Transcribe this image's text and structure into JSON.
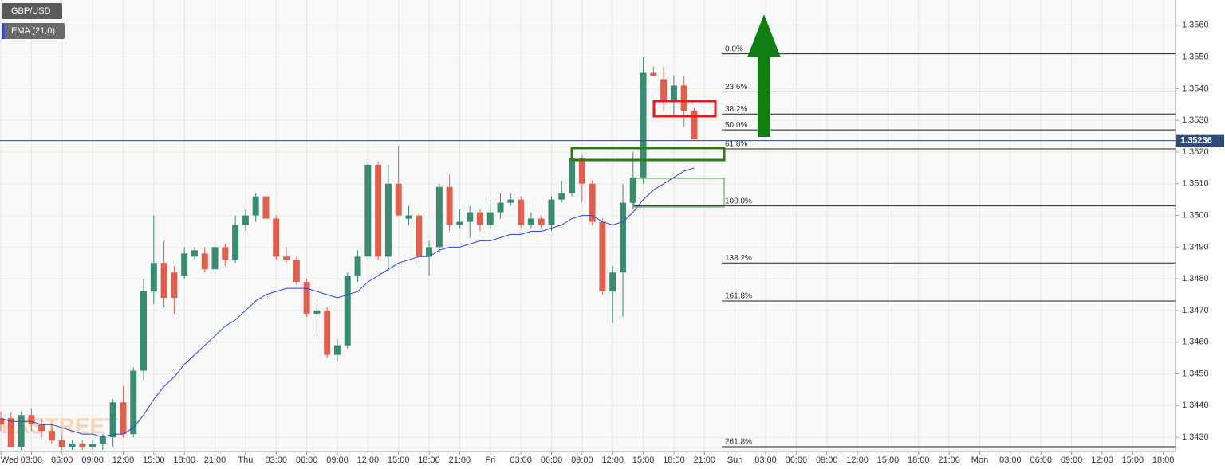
{
  "chart_data": {
    "type": "candlestick",
    "symbol": "GBP/USD",
    "watermark": "FXSTREET",
    "up_color": "#3b8a73",
    "down_color": "#e0604f",
    "grid": true,
    "x": [
      0,
      1,
      2,
      3,
      4,
      5,
      6,
      7,
      8,
      9,
      10,
      11,
      12,
      13,
      14,
      15,
      16,
      17,
      18,
      19,
      20,
      21,
      22,
      23,
      24,
      25,
      26,
      27,
      28,
      29,
      30,
      31,
      32,
      33,
      34,
      35,
      36,
      37,
      38,
      39,
      40,
      41,
      42,
      43,
      44,
      45,
      46,
      47,
      48,
      49,
      50,
      51,
      52,
      53,
      54,
      55,
      56,
      57,
      58,
      59,
      60,
      61,
      62,
      63,
      64,
      65,
      66,
      67,
      68
    ],
    "open": [
      1.3436,
      1.3436,
      1.3427,
      1.3437,
      1.3434,
      1.3432,
      1.3429,
      1.3427,
      1.3428,
      1.3427,
      1.3428,
      1.343,
      1.3441,
      1.3431,
      1.3451,
      1.3476,
      1.3485,
      1.3482,
      1.3481,
      1.3487,
      1.3488,
      1.3483,
      1.349,
      1.3486,
      1.3497,
      1.35,
      1.3506,
      1.3499,
      1.3487,
      1.3486,
      1.3479,
      1.3469,
      1.347,
      1.3456,
      1.3459,
      1.3481,
      1.3487,
      1.3516,
      1.3487,
      1.351,
      1.3499,
      1.35,
      1.3487,
      1.349,
      1.3509,
      1.3497,
      1.3498,
      1.3501,
      1.3497,
      1.3501,
      1.3504,
      1.3505,
      1.3497,
      1.3499,
      1.3497,
      1.3505,
      1.3507,
      1.3518,
      1.351,
      1.3498,
      1.3476,
      1.3482,
      1.3504,
      1.3512,
      1.3545,
      1.3543,
      1.3536,
      1.3541,
      1.3533
    ],
    "high": [
      1.3438,
      1.3438,
      1.3438,
      1.3439,
      1.3436,
      1.3434,
      1.3431,
      1.3429,
      1.3429,
      1.3429,
      1.3431,
      1.3442,
      1.3446,
      1.3452,
      1.348,
      1.35,
      1.3492,
      1.3484,
      1.349,
      1.349,
      1.349,
      1.3491,
      1.3491,
      1.35,
      1.3502,
      1.3507,
      1.3506,
      1.35,
      1.349,
      1.3487,
      1.348,
      1.3472,
      1.3471,
      1.3461,
      1.3482,
      1.3489,
      1.3517,
      1.3517,
      1.3516,
      1.3522,
      1.3503,
      1.3501,
      1.3492,
      1.351,
      1.3513,
      1.3502,
      1.3503,
      1.3502,
      1.3505,
      1.3507,
      1.3507,
      1.3506,
      1.3501,
      1.35,
      1.3506,
      1.3511,
      1.3519,
      1.3519,
      1.3511,
      1.3499,
      1.3484,
      1.351,
      1.352,
      1.355,
      1.3547,
      1.3547,
      1.3544,
      1.3544,
      1.3534
    ],
    "low": [
      1.3432,
      1.3427,
      1.3426,
      1.3432,
      1.343,
      1.3428,
      1.3426,
      1.3426,
      1.3426,
      1.3426,
      1.3426,
      1.3427,
      1.343,
      1.343,
      1.3448,
      1.3472,
      1.3471,
      1.3469,
      1.348,
      1.3486,
      1.3482,
      1.3482,
      1.3484,
      1.3485,
      1.3495,
      1.3498,
      1.3499,
      1.3486,
      1.3485,
      1.3478,
      1.3468,
      1.3462,
      1.3455,
      1.3454,
      1.3458,
      1.3479,
      1.3486,
      1.3486,
      1.3482,
      1.35,
      1.3497,
      1.3485,
      1.3481,
      1.3488,
      1.3495,
      1.3496,
      1.3493,
      1.3495,
      1.3496,
      1.3499,
      1.3503,
      1.3496,
      1.3496,
      1.3496,
      1.3495,
      1.3504,
      1.3506,
      1.3504,
      1.3497,
      1.3475,
      1.3466,
      1.3468,
      1.3502,
      1.351,
      1.3544,
      1.3533,
      1.3531,
      1.3528,
      1.3524
    ],
    "close": [
      1.3434,
      1.3427,
      1.3437,
      1.3434,
      1.3432,
      1.3429,
      1.3427,
      1.3428,
      1.3427,
      1.3428,
      1.343,
      1.3441,
      1.3431,
      1.3451,
      1.3476,
      1.3485,
      1.3474,
      1.3474,
      1.3488,
      1.3489,
      1.3483,
      1.349,
      1.3486,
      1.3497,
      1.35,
      1.3506,
      1.3499,
      1.3487,
      1.3486,
      1.3479,
      1.3469,
      1.347,
      1.3456,
      1.3459,
      1.3481,
      1.3487,
      1.3516,
      1.3487,
      1.351,
      1.35,
      1.35,
      1.3487,
      1.349,
      1.3509,
      1.3497,
      1.3498,
      1.3501,
      1.3497,
      1.3501,
      1.3504,
      1.3505,
      1.3497,
      1.3499,
      1.3497,
      1.3505,
      1.3507,
      1.3518,
      1.351,
      1.3498,
      1.3476,
      1.3482,
      1.3504,
      1.3512,
      1.3545,
      1.3544,
      1.3536,
      1.3541,
      1.3533,
      1.3524
    ],
    "series": [
      {
        "name": "EMA (21,0)",
        "color": "#2a45d8",
        "values": [
          1.3436,
          1.3435,
          1.3435,
          1.3435,
          1.3434,
          1.3434,
          1.3433,
          1.3432,
          1.3431,
          1.3431,
          1.343,
          1.3431,
          1.3431,
          1.3433,
          1.3437,
          1.3442,
          1.3446,
          1.3449,
          1.3453,
          1.3456,
          1.3459,
          1.3462,
          1.3465,
          1.3467,
          1.347,
          1.3473,
          1.3475,
          1.3476,
          1.3477,
          1.3477,
          1.3477,
          1.3476,
          1.3475,
          1.3474,
          1.3475,
          1.3476,
          1.3479,
          1.3481,
          1.3483,
          1.3485,
          1.3486,
          1.3487,
          1.3487,
          1.3489,
          1.349,
          1.349,
          1.3491,
          1.3492,
          1.3492,
          1.3493,
          1.3494,
          1.3494,
          1.3495,
          1.3495,
          1.3496,
          1.3497,
          1.3499,
          1.35,
          1.35,
          1.3498,
          1.3497,
          1.3498,
          1.3501,
          1.3505,
          1.3508,
          1.351,
          1.3512,
          1.3514,
          1.3515
        ]
      }
    ],
    "last_price": 1.35236,
    "fib_levels": [
      {
        "label": "0.0%",
        "value": 1.3551
      },
      {
        "label": "23.6%",
        "value": 1.3539
      },
      {
        "label": "38.2%",
        "value": 1.3532
      },
      {
        "label": "50.0%",
        "value": 1.3527
      },
      {
        "label": "61.8%",
        "value": 1.3521
      },
      {
        "label": "100.0%",
        "value": 1.3503
      },
      {
        "label": "138.2%",
        "value": 1.3485
      },
      {
        "label": "161.8%",
        "value": 1.3473
      },
      {
        "label": "261.8%",
        "value": 1.3427
      }
    ],
    "xlim": [
      -0.08,
      115.2
    ],
    "ylim": [
      1.34255,
      1.3568
    ],
    "yticks": [
      {
        "value": 1.343,
        "label": "1.3430"
      },
      {
        "value": 1.344,
        "label": "1.3440"
      },
      {
        "value": 1.345,
        "label": "1.3450"
      },
      {
        "value": 1.346,
        "label": "1.3460"
      },
      {
        "value": 1.347,
        "label": "1.3470"
      },
      {
        "value": 1.348,
        "label": "1.3480"
      },
      {
        "value": 1.349,
        "label": "1.3490"
      },
      {
        "value": 1.35,
        "label": "1.3500"
      },
      {
        "value": 1.351,
        "label": "1.3510"
      },
      {
        "value": 1.352,
        "label": "1.3520"
      },
      {
        "value": 1.353,
        "label": "1.3530"
      },
      {
        "value": 1.354,
        "label": "1.3540"
      },
      {
        "value": 1.355,
        "label": "1.3550"
      },
      {
        "value": 1.356,
        "label": "1.3560"
      }
    ],
    "xticks": [
      {
        "value": 0,
        "label": "Wed"
      },
      {
        "value": 3,
        "label": "03:00"
      },
      {
        "value": 6,
        "label": "06:00"
      },
      {
        "value": 9,
        "label": "09:00"
      },
      {
        "value": 12,
        "label": "12:00"
      },
      {
        "value": 15,
        "label": "15:00"
      },
      {
        "value": 18,
        "label": "18:00"
      },
      {
        "value": 21,
        "label": "21:00"
      },
      {
        "value": 24,
        "label": "Thu"
      },
      {
        "value": 27,
        "label": "03:00"
      },
      {
        "value": 30,
        "label": "06:00"
      },
      {
        "value": 33,
        "label": "09:00"
      },
      {
        "value": 36,
        "label": "12:00"
      },
      {
        "value": 39,
        "label": "15:00"
      },
      {
        "value": 42,
        "label": "18:00"
      },
      {
        "value": 45,
        "label": "21:00"
      },
      {
        "value": 48,
        "label": "Fri"
      },
      {
        "value": 51,
        "label": "03:00"
      },
      {
        "value": 54,
        "label": "06:00"
      },
      {
        "value": 57,
        "label": "09:00"
      },
      {
        "value": 60,
        "label": "12:00"
      },
      {
        "value": 63,
        "label": "15:00"
      },
      {
        "value": 66,
        "label": "18:00"
      },
      {
        "value": 69,
        "label": "21:00"
      },
      {
        "value": 72,
        "label": "Sun"
      },
      {
        "value": 75,
        "label": "03:00"
      },
      {
        "value": 78,
        "label": "06:00"
      },
      {
        "value": 81,
        "label": "09:00"
      },
      {
        "value": 84,
        "label": "12:00"
      },
      {
        "value": 87,
        "label": "15:00"
      },
      {
        "value": 90,
        "label": "18:00"
      },
      {
        "value": 93,
        "label": "21:00"
      },
      {
        "value": 96,
        "label": "Mon"
      },
      {
        "value": 99,
        "label": "03:00"
      },
      {
        "value": 102,
        "label": "06:00"
      },
      {
        "value": 105,
        "label": "09:00"
      },
      {
        "value": 108,
        "label": "12:00"
      },
      {
        "value": 111,
        "label": "15:00"
      },
      {
        "value": 114,
        "label": "18:00"
      }
    ]
  }
}
